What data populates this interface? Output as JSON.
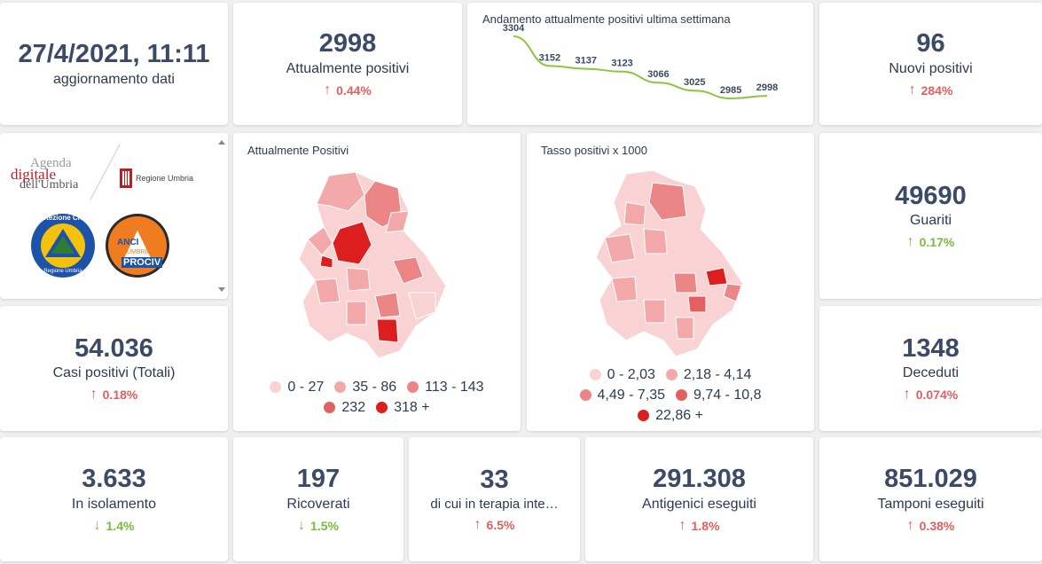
{
  "update": {
    "datetime": "27/4/2021, 11:11",
    "label": "aggiornamento dati"
  },
  "colors": {
    "up_bad": "#e0605e",
    "up_good": "#7cba3a",
    "line": "#8cc63f",
    "text": "#3b4a66"
  },
  "kpis": {
    "attualmente_positivi": {
      "value": "2998",
      "label": "Attualmente positivi",
      "change": "0.44%"
    },
    "nuovi_positivi": {
      "value": "96",
      "label": "Nuovi positivi",
      "change": "284%"
    },
    "guariti": {
      "value": "49690",
      "label": "Guariti",
      "change": "0.17%"
    },
    "deceduti": {
      "value": "1348",
      "label": "Deceduti",
      "change": "0.074%"
    },
    "casi_totali": {
      "value": "54.036",
      "label": "Casi positivi (Totali)",
      "change": "0.18%"
    },
    "isolamento": {
      "value": "3.633",
      "label": "In isolamento",
      "change": "1.4%"
    },
    "ricoverati": {
      "value": "197",
      "label": "Ricoverati",
      "change": "1.5%"
    },
    "terapia": {
      "value": "33",
      "label": "di cui in terapia inte…",
      "change": "6.5%"
    },
    "antigenici": {
      "value": "291.308",
      "label": "Antigenici eseguiti",
      "change": "1.8%"
    },
    "tamponi": {
      "value": "851.029",
      "label": "Tamponi eseguiti",
      "change": "0.38%"
    }
  },
  "trend": {
    "title": "Andamento attualmente positivi ultima settimana",
    "chart_data": {
      "type": "line",
      "title": "Andamento attualmente positivi ultima settimana",
      "values": [
        3304,
        3152,
        3137,
        3123,
        3066,
        3025,
        2985,
        2998
      ],
      "labels": [
        "3304",
        "3152",
        "3137",
        "3123",
        "3066",
        "3025",
        "2985",
        "2998"
      ]
    }
  },
  "logos": {
    "agenda_line1": "Agenda",
    "agenda_line2": "digitale",
    "agenda_line3": "dell'Umbria",
    "regione": "Regione Umbria",
    "protezione": "Protezione Civile",
    "protezione_sub": "Regione Umbria",
    "anci_1": "ANCI",
    "anci_2": "UMBRIA",
    "anci_3": "PROCIV"
  },
  "map_positivi": {
    "title": "Attualmente Positivi",
    "legend": [
      {
        "label": "0 - 27",
        "color": "#f9d3d3"
      },
      {
        "label": "35 - 86",
        "color": "#f3a9a9"
      },
      {
        "label": "113 - 143",
        "color": "#ec8585"
      },
      {
        "label": "232",
        "color": "#e36060"
      },
      {
        "label": "318 +",
        "color": "#dc1e1e"
      }
    ]
  },
  "map_tasso": {
    "title": "Tasso positivi x 1000",
    "legend": [
      {
        "label": "0 - 2,03",
        "color": "#f9d3d3"
      },
      {
        "label": "2,18 - 4,14",
        "color": "#f3a9a9"
      },
      {
        "label": "4,49 - 7,35",
        "color": "#ec8585"
      },
      {
        "label": "9,74 - 10,8",
        "color": "#e36060"
      },
      {
        "label": "22,86 +",
        "color": "#dc1e1e"
      }
    ]
  }
}
